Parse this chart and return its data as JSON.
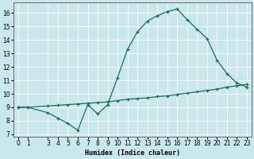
{
  "xlabel": "Humidex (Indice chaleur)",
  "background_color": "#c8e8ec",
  "line_color": "#1a6b5a",
  "grid_color": "#ffffff",
  "xlim": [
    -0.5,
    23.5
  ],
  "ylim": [
    6.8,
    16.8
  ],
  "yticks": [
    7,
    8,
    9,
    10,
    11,
    12,
    13,
    14,
    15,
    16
  ],
  "xticks": [
    0,
    1,
    3,
    4,
    5,
    6,
    7,
    8,
    9,
    10,
    11,
    12,
    13,
    14,
    15,
    16,
    17,
    18,
    19,
    20,
    21,
    22,
    23
  ],
  "line1_x": [
    0,
    1,
    3,
    4,
    5,
    6,
    7,
    8,
    9,
    10,
    11,
    12,
    13,
    14,
    15,
    16,
    17,
    18,
    19,
    20,
    21,
    22,
    23
  ],
  "line1_y": [
    9.0,
    9.0,
    8.6,
    8.2,
    7.8,
    7.3,
    9.2,
    8.5,
    9.2,
    11.2,
    13.3,
    14.6,
    15.4,
    15.8,
    16.1,
    16.3,
    15.5,
    14.8,
    14.1,
    12.5,
    11.5,
    10.8,
    10.5
  ],
  "line2_x": [
    0,
    1,
    3,
    4,
    5,
    6,
    7,
    8,
    9,
    10,
    11,
    12,
    13,
    14,
    15,
    16,
    17,
    18,
    19,
    20,
    21,
    22,
    23
  ],
  "line2_y": [
    9.0,
    9.0,
    9.1,
    9.15,
    9.2,
    9.25,
    9.3,
    9.35,
    9.4,
    9.5,
    9.6,
    9.65,
    9.7,
    9.8,
    9.85,
    9.95,
    10.05,
    10.15,
    10.25,
    10.35,
    10.5,
    10.6,
    10.7
  ]
}
